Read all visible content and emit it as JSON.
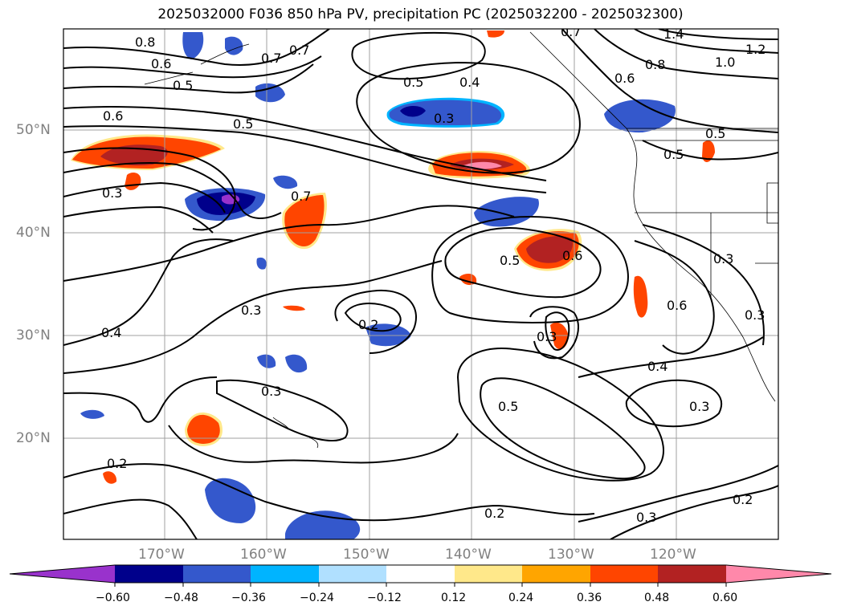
{
  "title": "2025032000 F036 850 hPa PV, precipitation PC (2025032200 - 2025032300)",
  "map": {
    "lat_labels": [
      "50°N",
      "40°N",
      "30°N",
      "20°N"
    ],
    "lon_labels": [
      "170°W",
      "160°W",
      "150°W",
      "140°W",
      "130°W",
      "120°W"
    ],
    "gridline_color": "#a0a0a0",
    "contour_color": "#000000",
    "contour_labels": [
      "0.8",
      "0.6",
      "0.5",
      "0.7",
      "0.7",
      "0.6",
      "0.5",
      "0.3",
      "0.7",
      "0.5",
      "0.4",
      "0.3",
      "0.7",
      "1.4",
      "1.2",
      "1.0",
      "0.8",
      "0.6",
      "0.5",
      "0.5",
      "0.5",
      "0.6",
      "0.3",
      "0.3",
      "0.6",
      "0.3",
      "0.4",
      "0.2",
      "0.3",
      "0.3",
      "0.4",
      "0.5",
      "0.3",
      "0.2",
      "0.2",
      "0.3",
      "0.2"
    ]
  },
  "colorbar": {
    "ticks": [
      "−0.60",
      "−0.48",
      "−0.36",
      "−0.24",
      "−0.12",
      "0.12",
      "0.24",
      "0.36",
      "0.48",
      "0.60"
    ],
    "colors": [
      "#9932cc",
      "#00008b",
      "#3458cc",
      "#00b4ff",
      "#b0e0ff",
      "#ffffff",
      "#ffe88a",
      "#ffa500",
      "#ff4500",
      "#b22222",
      "#ff88aa",
      "#ff88aa"
    ]
  }
}
